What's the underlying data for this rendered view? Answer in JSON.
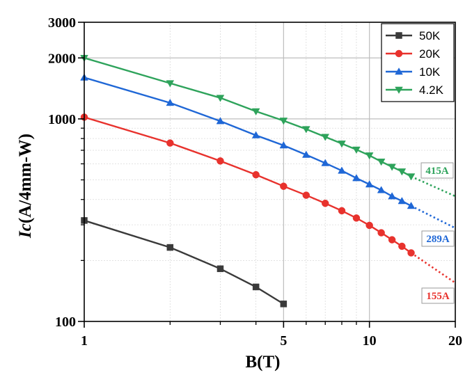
{
  "chart_data": {
    "type": "line",
    "title": "",
    "xlabel": "B(T)",
    "ylabel_italic": "Ic",
    "ylabel_rest": "(A/4mm-W)",
    "x_scale": "log",
    "y_scale": "log",
    "xlim": [
      1,
      20
    ],
    "ylim": [
      100,
      3000
    ],
    "x_ticks": [
      {
        "value": 1,
        "label": "1"
      },
      {
        "value": 5,
        "label": "5"
      },
      {
        "value": 10,
        "label": "10"
      },
      {
        "value": 20,
        "label": "20"
      }
    ],
    "y_ticks": [
      {
        "value": 100,
        "label": "100"
      },
      {
        "value": 1000,
        "label": "1000"
      },
      {
        "value": 2000,
        "label": "2000"
      },
      {
        "value": 3000,
        "label": "3000"
      }
    ],
    "legend_position": "top-right",
    "series": [
      {
        "name": "50K",
        "color": "#3a3a3a",
        "marker": "square",
        "x": [
          1,
          2,
          3,
          4,
          5
        ],
        "y": [
          315,
          232,
          182,
          148,
          122
        ],
        "extrapolation": null,
        "annotation": null
      },
      {
        "name": "20K",
        "color": "#e8322d",
        "marker": "circle",
        "x": [
          1,
          2,
          3,
          4,
          5,
          6,
          7,
          8,
          9,
          10,
          11,
          12,
          13,
          14
        ],
        "y": [
          1020,
          760,
          620,
          530,
          465,
          420,
          383,
          352,
          324,
          298,
          274,
          253,
          235,
          218
        ],
        "extrapolation": {
          "x": [
            14,
            20
          ],
          "y": [
            218,
            155
          ]
        },
        "annotation": "155A"
      },
      {
        "name": "10K",
        "color": "#1f67d6",
        "marker": "triangle-up",
        "x": [
          1,
          2,
          3,
          4,
          5,
          6,
          7,
          8,
          9,
          10,
          11,
          12,
          13,
          14
        ],
        "y": [
          1600,
          1200,
          975,
          830,
          740,
          665,
          605,
          555,
          510,
          475,
          445,
          415,
          393,
          372
        ],
        "extrapolation": {
          "x": [
            14,
            20
          ],
          "y": [
            372,
            289
          ]
        },
        "annotation": "289A"
      },
      {
        "name": "4.2K",
        "color": "#2ea35b",
        "marker": "triangle-down",
        "x": [
          1,
          2,
          3,
          4,
          5,
          6,
          7,
          8,
          9,
          10,
          11,
          12,
          13,
          14
        ],
        "y": [
          2000,
          1500,
          1270,
          1090,
          980,
          890,
          815,
          755,
          705,
          660,
          615,
          580,
          550,
          520
        ],
        "extrapolation": {
          "x": [
            14,
            20
          ],
          "y": [
            520,
            415
          ]
        },
        "annotation": "415A"
      }
    ]
  }
}
